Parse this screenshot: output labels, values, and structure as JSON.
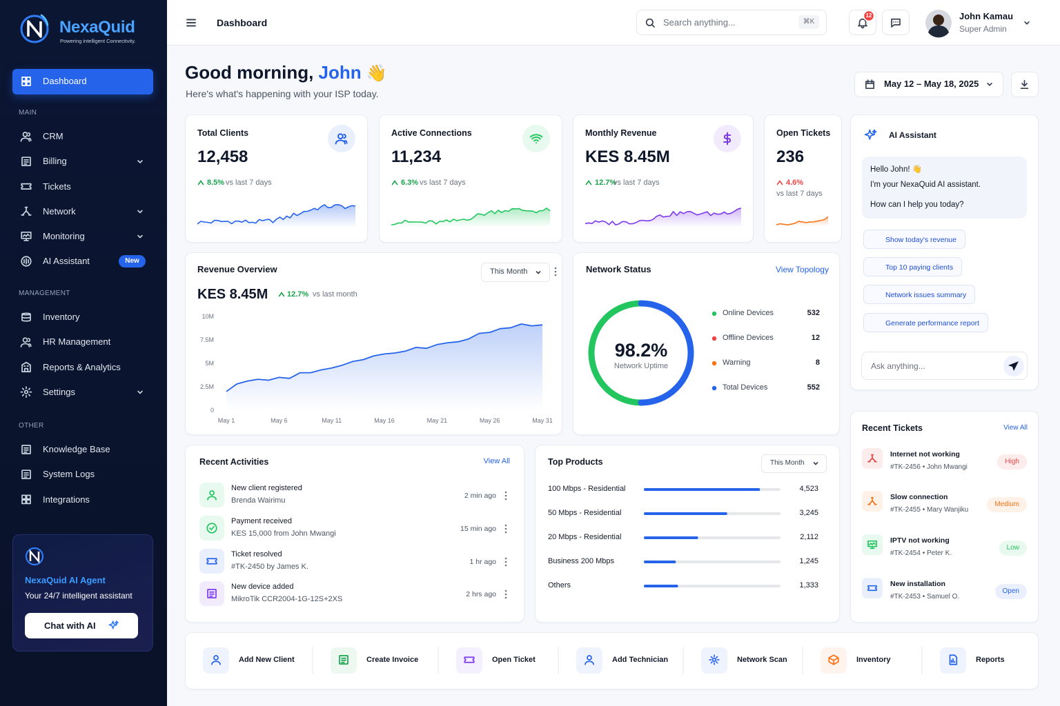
{
  "sidebar": {
    "brand": "NexaQuid",
    "tagline": "Powering intelligent Connectivity.",
    "active_item": "Dashboard",
    "sections": [
      {
        "title": "MAIN",
        "items": [
          {
            "label": "CRM"
          },
          {
            "label": "Billing",
            "submenu": true
          },
          {
            "label": "Tickets"
          },
          {
            "label": "Network",
            "submenu": true
          },
          {
            "label": "Monitoring",
            "submenu": true
          },
          {
            "label": "AI Assistant",
            "badge": "New"
          }
        ]
      },
      {
        "title": "MANAGEMENT",
        "items": [
          {
            "label": "Inventory"
          },
          {
            "label": "HR Management"
          },
          {
            "label": "Reports & Analytics"
          },
          {
            "label": "Settings",
            "submenu": true
          }
        ]
      },
      {
        "title": "OTHER",
        "items": [
          {
            "label": "Knowledge Base"
          },
          {
            "label": "System Logs"
          },
          {
            "label": "Integrations"
          }
        ]
      }
    ],
    "agent": {
      "title": "NexaQuid AI Agent",
      "subtitle": "Your 24/7 intelligent assistant",
      "button": "Chat with AI"
    }
  },
  "topbar": {
    "page_title": "Dashboard",
    "search_placeholder": "Search anything...",
    "shortcut": "⌘K",
    "notification_count": 12,
    "user": {
      "name": "John Kamau",
      "role": "Super Admin"
    }
  },
  "header": {
    "greeting": "Good morning,",
    "name": "John",
    "emoji": "👋",
    "subtitle": "Here's what's happening with your ISP today.",
    "date_range": "May 12 – May 18, 2025"
  },
  "kpis": [
    {
      "title": "Total Clients",
      "value": "12,458",
      "change": "8.5%",
      "period": "vs last 7 days",
      "trend": "up",
      "change_color": "#16a34a",
      "color": "#2563eb"
    },
    {
      "title": "Active Connections",
      "value": "11,234",
      "change": "6.3%",
      "period": "vs last 7 days",
      "trend": "up",
      "change_color": "#16a34a",
      "color": "#22c55e"
    },
    {
      "title": "Monthly Revenue",
      "value": "KES 8.45M",
      "change": "12.7%",
      "period": "vs last 7 days",
      "trend": "up",
      "change_color": "#16a34a",
      "color": "#7c3aed"
    },
    {
      "title": "Open Tickets",
      "value": "236",
      "change": "4.6%",
      "period": "vs last 7 days",
      "trend": "up",
      "change_color": "#ef4444",
      "color": "#f97316"
    }
  ],
  "revenue_overview": {
    "title": "Revenue Overview",
    "filter": "This Month",
    "total": "KES 8.45M",
    "change": "12.7%",
    "period": "vs last month",
    "chart": {
      "type": "area",
      "categories": [
        "May 1",
        null,
        null,
        null,
        null,
        "May 6",
        null,
        null,
        null,
        null,
        "May 11",
        null,
        null,
        null,
        null,
        "May 16",
        null,
        null,
        null,
        null,
        "May 21",
        null,
        null,
        null,
        null,
        "May 26",
        null,
        null,
        null,
        null,
        "May 31"
      ],
      "values": [
        2.0,
        2.8,
        3.1,
        3.3,
        3.2,
        3.5,
        3.4,
        4.0,
        4.0,
        4.3,
        4.5,
        4.8,
        5.2,
        5.4,
        5.8,
        6.0,
        6.1,
        6.3,
        6.7,
        6.6,
        7.0,
        7.2,
        7.3,
        7.6,
        8.2,
        8.3,
        8.7,
        8.8,
        9.2,
        9.0,
        9.1
      ],
      "color": "#2563eb",
      "ylim": [
        0,
        10
      ],
      "yticks": [
        0,
        {
          "value": 2.5,
          "label": "2.5M"
        },
        {
          "value": 5,
          "label": "5M"
        },
        {
          "value": 7.5,
          "label": "7.5M"
        },
        {
          "value": 10,
          "label": "10M"
        }
      ],
      "grid": false
    }
  },
  "network_status": {
    "title": "Network Status",
    "link": "View Topology",
    "uptime": "98.2%",
    "uptime_label": "Network Uptime",
    "devices": [
      {
        "label": "Online Devices",
        "value": 532,
        "color": "#22c55e"
      },
      {
        "label": "Offline Devices",
        "value": 12,
        "color": "#ef4444"
      },
      {
        "label": "Warning",
        "value": 8,
        "color": "#f97316"
      },
      {
        "label": "Total Devices",
        "value": 552,
        "color": "#2563eb"
      }
    ]
  },
  "ai_assistant": {
    "title": "AI Assistant",
    "greeting": "Hello John! 👋",
    "intro": "I'm your NexaQuid AI assistant.",
    "question": "How can I help you today?",
    "suggestions": [
      "Show today's revenue",
      "Top 10 paying clients",
      "Network issues summary",
      "Generate performance report"
    ],
    "input_placeholder": "Ask anything..."
  },
  "recent_tickets": {
    "title": "Recent Tickets",
    "link": "View All",
    "items": [
      {
        "title": "Internet not working",
        "meta": "#TK-2456 • John Mwangi",
        "priority": "High",
        "color": "#ef4444"
      },
      {
        "title": "Slow connection",
        "meta": "#TK-2455 • Mary Wanjiku",
        "priority": "Medium",
        "color": "#f97316"
      },
      {
        "title": "IPTV not working",
        "meta": "#TK-2454 • Peter K.",
        "priority": "Low",
        "color": "#22c55e"
      },
      {
        "title": "New installation",
        "meta": "#TK-2453 • Samuel O.",
        "priority": "Open",
        "color": "#2563eb"
      }
    ]
  },
  "recent_activities": {
    "title": "Recent Activities",
    "link": "View All",
    "items": [
      {
        "title": "New client registered",
        "detail": "Brenda Wairimu",
        "time": "2 min ago",
        "color": "#22c55e"
      },
      {
        "title": "Payment received",
        "detail": "KES 15,000 from John Mwangi",
        "time": "15 min ago",
        "color": "#22c55e"
      },
      {
        "title": "Ticket resolved",
        "detail": "#TK-2450 by James K.",
        "time": "1 hr ago",
        "color": "#2563eb"
      },
      {
        "title": "New device added",
        "detail": "MikroTik CCR2004-1G-12S+2XS",
        "time": "2 hrs ago",
        "color": "#7c3aed"
      }
    ]
  },
  "top_products": {
    "title": "Top Products",
    "filter": "This Month",
    "color": "#2563eb",
    "items": [
      {
        "name": "100 Mbps - Residential",
        "value": 4523,
        "value_label": "4,523"
      },
      {
        "name": "50 Mbps - Residential",
        "value": 3245,
        "value_label": "3,245"
      },
      {
        "name": "20 Mbps - Residential",
        "value": 2112,
        "value_label": "2,112"
      },
      {
        "name": "Business 200 Mbps",
        "value": 1245,
        "value_label": "1,245"
      },
      {
        "name": "Others",
        "value": 1333,
        "value_label": "1,333"
      }
    ]
  },
  "quick_actions": [
    {
      "label": "Add New Client",
      "color": "#2563eb"
    },
    {
      "label": "Create Invoice",
      "color": "#16a34a"
    },
    {
      "label": "Open Ticket",
      "color": "#7c3aed"
    },
    {
      "label": "Add Technician",
      "color": "#2563eb"
    },
    {
      "label": "Network Scan",
      "color": "#2563eb"
    },
    {
      "label": "Inventory",
      "color": "#f97316"
    },
    {
      "label": "Reports",
      "color": "#2563eb"
    }
  ]
}
